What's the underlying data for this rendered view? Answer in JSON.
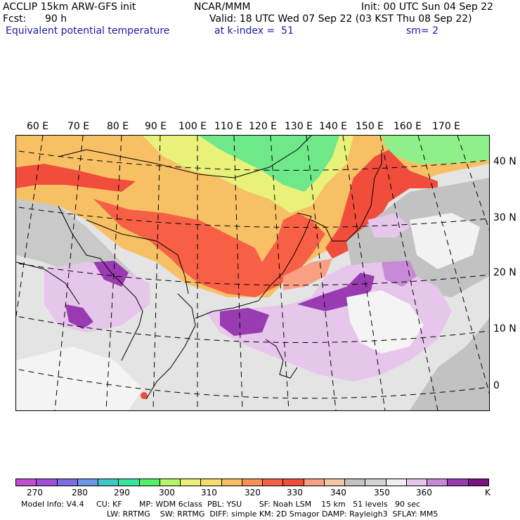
{
  "header": {
    "model": "ACCLIP 15km ARW-GFS init",
    "agency": "NCAR/MMM",
    "init": "Init: 00 UTC Sun 04 Sep 22",
    "fcst_label": "Fcst:",
    "fcst_value": "90 h",
    "valid": "Valid: 18 UTC Wed 07 Sep 22 (03 KST Thu 08 Sep 22)",
    "field": "Equivalent potential temperature",
    "level": "at k-index =  51",
    "smoothing": "sm= 2"
  },
  "map": {
    "lon_labels": [
      "60 E",
      "70 E",
      "80 E",
      "90 E",
      "100 E",
      "110 E",
      "120 E",
      "130 E",
      "140 E",
      "150 E",
      "160 E",
      "170 E"
    ],
    "lat_labels": [
      "40 N",
      "30 N",
      "20 N",
      "10 N",
      "0"
    ]
  },
  "colorbar": {
    "unit": "K",
    "labels": [
      "270",
      "280",
      "290",
      "300",
      "310",
      "320",
      "330",
      "340",
      "350",
      "360"
    ],
    "colors": [
      "#c04fd0",
      "#a050d8",
      "#7a6ee0",
      "#6d96e6",
      "#3fc9c4",
      "#36e69a",
      "#54f06a",
      "#b6f56a",
      "#e8f27a",
      "#f7dd6e",
      "#f8c065",
      "#f98f55",
      "#f76045",
      "#f04d3c",
      "#f7a084",
      "#f3c6a8",
      "#c2c2c2",
      "#d4d4d4",
      "#eeeeee",
      "#e6c6ea",
      "#c88ad6",
      "#993cb2",
      "#7a147e"
    ]
  },
  "footer": {
    "line1": "Model Info: V4.4     CU: KF       MP: WDM 6class  PBL: YSU       SF: Noah LSM    15 km   51 levels   90 sec",
    "line2": "LW: RRTMG    SW: RRTMG  DIFF: simple KM: 2D Smagor DAMP: Rayleigh3  SFLAY: MM5"
  }
}
